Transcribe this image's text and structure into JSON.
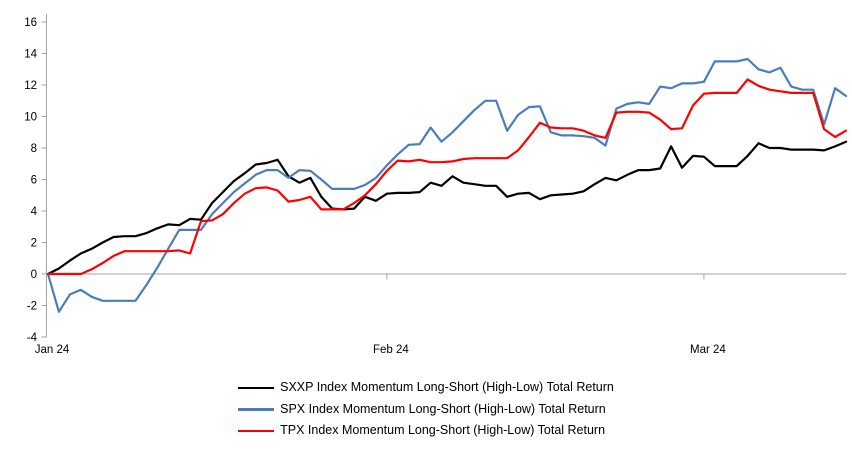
{
  "chart_data": {
    "type": "line",
    "title": "",
    "xlabel": "",
    "ylabel": "",
    "x_unit": "daily (day index from start)",
    "x_count": 74,
    "x_ticks": [
      {
        "label": "Jan 24",
        "day": 0
      },
      {
        "label": "Feb 24",
        "day": 31
      },
      {
        "label": "Mar 24",
        "day": 60
      }
    ],
    "ylim": [
      -4,
      16
    ],
    "y_tick_step": 2,
    "grid": "zero-line-only",
    "legend_position": "bottom-center",
    "axis_color": "#a6a6a6",
    "text_color": "#000000",
    "series": [
      {
        "name": "SXXP Index Momentum Long-Short (High-Low) Total Return",
        "color": "#000000",
        "values": [
          0,
          0.35,
          0.85,
          1.3,
          1.6,
          2.0,
          2.35,
          2.4,
          2.4,
          2.6,
          2.9,
          3.15,
          3.1,
          3.5,
          3.45,
          4.5,
          5.2,
          5.9,
          6.4,
          6.95,
          7.05,
          7.25,
          6.2,
          5.8,
          6.1,
          4.9,
          4.15,
          4.1,
          4.15,
          4.9,
          4.65,
          5.1,
          5.15,
          5.15,
          5.2,
          5.8,
          5.6,
          6.2,
          5.8,
          5.7,
          5.6,
          5.6,
          4.9,
          5.1,
          5.15,
          4.75,
          5.0,
          5.05,
          5.1,
          5.25,
          5.7,
          6.1,
          5.95,
          6.3,
          6.6,
          6.6,
          6.7,
          8.1,
          6.75,
          7.5,
          7.45,
          6.85,
          6.85,
          6.85,
          7.5,
          8.3,
          8.0,
          8.0,
          7.9,
          7.9,
          7.9,
          7.85,
          8.1,
          8.4
        ]
      },
      {
        "name": "SPX Index Momentum Long-Short (High-Low) Total Return",
        "color": "#4a7ebb",
        "values": [
          0,
          -2.4,
          -1.3,
          -1.0,
          -1.45,
          -1.7,
          -1.7,
          -1.7,
          -1.7,
          -0.7,
          0.4,
          1.6,
          2.8,
          2.8,
          2.8,
          3.8,
          4.5,
          5.2,
          5.75,
          6.3,
          6.6,
          6.6,
          6.1,
          6.6,
          6.55,
          6.0,
          5.4,
          5.4,
          5.4,
          5.65,
          6.1,
          6.9,
          7.6,
          8.2,
          8.25,
          9.3,
          8.4,
          9.0,
          9.7,
          10.4,
          11.0,
          11.0,
          9.1,
          10.1,
          10.6,
          10.65,
          9.0,
          8.8,
          8.8,
          8.75,
          8.65,
          8.15,
          10.5,
          10.8,
          10.9,
          10.8,
          11.9,
          11.8,
          12.1,
          12.1,
          12.2,
          13.5,
          13.5,
          13.5,
          13.65,
          13.0,
          12.8,
          13.1,
          11.9,
          11.7,
          11.7,
          9.5,
          11.8,
          11.3
        ]
      },
      {
        "name": "TPX Index Momentum Long-Short (High-Low) Total Return",
        "color": "#fe0000",
        "values": [
          0,
          0,
          0,
          0,
          0.3,
          0.7,
          1.15,
          1.45,
          1.45,
          1.45,
          1.45,
          1.45,
          1.5,
          1.3,
          3.35,
          3.4,
          3.8,
          4.5,
          5.1,
          5.45,
          5.5,
          5.3,
          4.6,
          4.7,
          4.9,
          4.1,
          4.1,
          4.1,
          4.5,
          5.0,
          5.7,
          6.55,
          7.2,
          7.15,
          7.25,
          7.1,
          7.1,
          7.15,
          7.3,
          7.35,
          7.35,
          7.35,
          7.35,
          7.85,
          8.7,
          9.6,
          9.3,
          9.25,
          9.25,
          9.1,
          8.8,
          8.65,
          10.25,
          10.3,
          10.3,
          10.25,
          9.8,
          9.2,
          9.25,
          10.7,
          11.45,
          11.5,
          11.5,
          11.5,
          12.35,
          11.95,
          11.7,
          11.6,
          11.5,
          11.5,
          11.5,
          9.2,
          8.7,
          9.1
        ]
      }
    ]
  },
  "legend": {
    "items": [
      {
        "label": "SXXP Index Momentum Long-Short (High-Low) Total Return"
      },
      {
        "label": "SPX Index Momentum Long-Short (High-Low) Total Return"
      },
      {
        "label": "TPX Index Momentum Long-Short (High-Low) Total Return"
      }
    ]
  }
}
